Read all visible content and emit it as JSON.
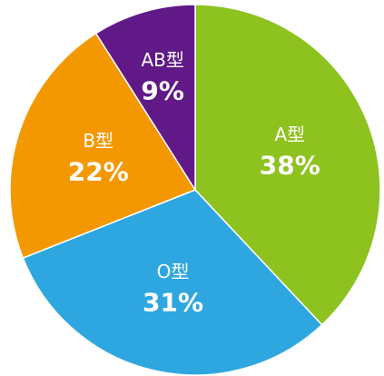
{
  "chart_data": {
    "type": "pie",
    "categories": [
      "A型",
      "O型",
      "B型",
      "AB型"
    ],
    "values": [
      38,
      31,
      22,
      9
    ],
    "value_labels": [
      "38%",
      "31%",
      "22%",
      "9%"
    ],
    "colors": [
      "#8dc21f",
      "#2ea7e0",
      "#f39800",
      "#601986"
    ]
  }
}
